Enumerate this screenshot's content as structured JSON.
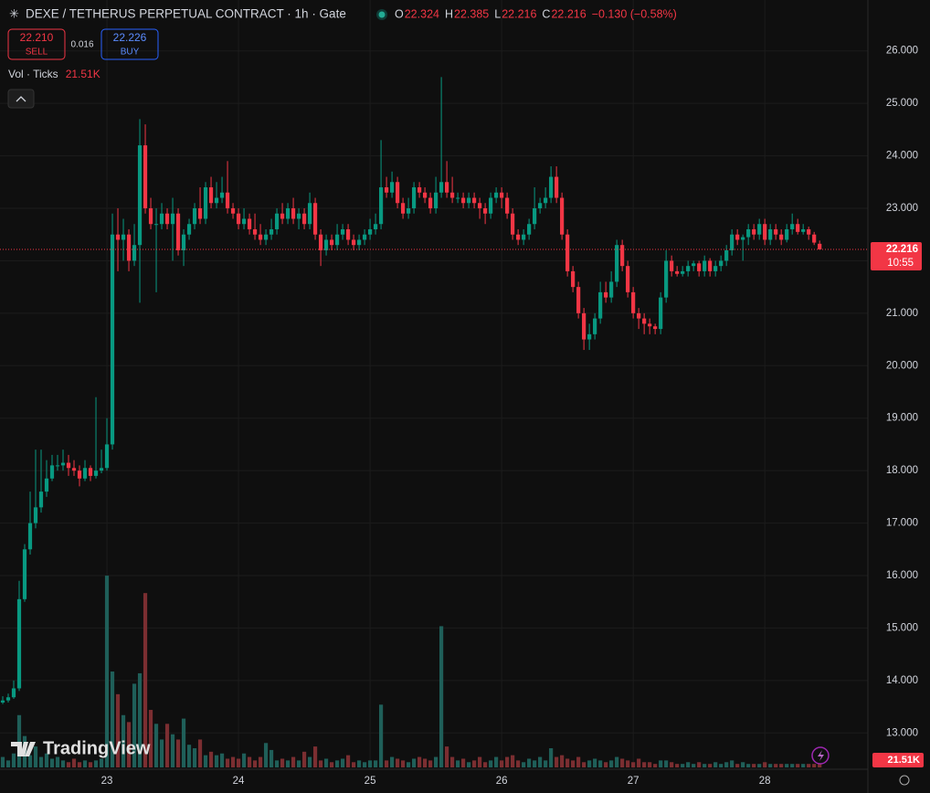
{
  "chart_data": {
    "type": "candlestick",
    "title": "DEXE / TETHERUS PERPETUAL CONTRACT · 1h · Gate",
    "header_fields": [
      {
        "key": "O",
        "value": "22.324"
      },
      {
        "key": "H",
        "value": "22.385"
      },
      {
        "key": "L",
        "value": "22.216"
      },
      {
        "key": "C",
        "value": "22.216"
      }
    ],
    "change": "−0.130 (−0.58%)",
    "sell": {
      "price": "22.210",
      "label": "SELL"
    },
    "spread": "0.016",
    "buy": {
      "price": "22.226",
      "label": "BUY"
    },
    "volume_title": "Vol · Ticks",
    "volume_last": "21.51K",
    "last_price_label": "22.216",
    "countdown": "10:55",
    "brand": "TradingView",
    "grid": true,
    "colors": {
      "up": "#089981",
      "down": "#f23645",
      "up_volume": "#1f5f59",
      "down_volume": "#7b2e31"
    },
    "xlim": [
      -0.5,
      157.8
    ],
    "xticks": [
      {
        "value": 19,
        "label": "23"
      },
      {
        "value": 43,
        "label": "24"
      },
      {
        "value": 67,
        "label": "25"
      },
      {
        "value": 91,
        "label": "26"
      },
      {
        "value": 115,
        "label": "27"
      },
      {
        "value": 139,
        "label": "28"
      }
    ],
    "ylim": [
      12.5,
      26.5
    ],
    "yticks": [
      {
        "value": 13,
        "label": "13.000"
      },
      {
        "value": 14,
        "label": "14.000"
      },
      {
        "value": 15,
        "label": "15.000"
      },
      {
        "value": 16,
        "label": "16.000"
      },
      {
        "value": 17,
        "label": "17.000"
      },
      {
        "value": 18,
        "label": "18.000"
      },
      {
        "value": 19,
        "label": "19.000"
      },
      {
        "value": 20,
        "label": "20.000"
      },
      {
        "value": 21,
        "label": "21.000"
      },
      {
        "value": 22,
        "label": "22.000"
      },
      {
        "value": 23,
        "label": "23.000"
      },
      {
        "value": 24,
        "label": "24.000"
      },
      {
        "value": 25,
        "label": "25.000"
      },
      {
        "value": 26,
        "label": "26.000"
      }
    ],
    "volume_ylim": [
      0,
      1200
    ],
    "ohlc": [
      [
        13.58,
        13.7,
        13.55,
        13.62
      ],
      [
        13.62,
        13.75,
        13.58,
        13.68
      ],
      [
        13.68,
        14.0,
        13.65,
        13.85
      ],
      [
        13.85,
        15.9,
        13.8,
        15.55
      ],
      [
        15.55,
        16.6,
        15.5,
        16.5
      ],
      [
        16.5,
        17.6,
        16.4,
        17.0
      ],
      [
        17.0,
        18.4,
        16.9,
        17.3
      ],
      [
        17.3,
        18.4,
        17.2,
        17.6
      ],
      [
        17.6,
        18.2,
        17.5,
        17.85
      ],
      [
        17.85,
        18.3,
        17.8,
        18.1
      ],
      [
        18.1,
        18.3,
        18.0,
        18.1
      ],
      [
        18.1,
        18.4,
        18.0,
        18.15
      ],
      [
        18.15,
        18.3,
        17.9,
        18.05
      ],
      [
        18.05,
        18.2,
        17.9,
        18.0
      ],
      [
        18.0,
        18.1,
        17.7,
        17.85
      ],
      [
        17.85,
        18.2,
        17.8,
        18.05
      ],
      [
        18.05,
        18.1,
        17.8,
        17.9
      ],
      [
        17.9,
        19.4,
        17.85,
        18.0
      ],
      [
        18.0,
        18.4,
        17.95,
        18.05
      ],
      [
        18.05,
        19.0,
        18.0,
        18.5
      ],
      [
        18.5,
        22.9,
        18.4,
        22.5
      ],
      [
        22.5,
        23.0,
        21.8,
        22.4
      ],
      [
        22.4,
        22.8,
        22.0,
        22.5
      ],
      [
        22.5,
        22.6,
        21.8,
        22.0
      ],
      [
        22.0,
        22.7,
        21.9,
        22.3
      ],
      [
        22.3,
        24.7,
        21.2,
        24.2
      ],
      [
        24.2,
        24.6,
        22.9,
        23.0
      ],
      [
        23.0,
        23.2,
        22.6,
        22.7
      ],
      [
        22.7,
        23.0,
        21.4,
        22.7
      ],
      [
        22.7,
        23.1,
        22.6,
        22.9
      ],
      [
        22.9,
        23.0,
        22.6,
        22.7
      ],
      [
        22.7,
        23.2,
        22.0,
        22.9
      ],
      [
        22.9,
        23.0,
        22.1,
        22.2
      ],
      [
        22.2,
        22.6,
        21.9,
        22.5
      ],
      [
        22.5,
        22.8,
        22.4,
        22.7
      ],
      [
        22.7,
        23.1,
        22.6,
        23.0
      ],
      [
        23.0,
        23.4,
        22.7,
        22.8
      ],
      [
        22.8,
        23.5,
        22.7,
        23.4
      ],
      [
        23.4,
        23.6,
        23.0,
        23.1
      ],
      [
        23.1,
        23.5,
        23.0,
        23.2
      ],
      [
        23.2,
        23.6,
        23.1,
        23.3
      ],
      [
        23.3,
        23.9,
        22.9,
        23.0
      ],
      [
        23.0,
        23.1,
        22.8,
        22.9
      ],
      [
        22.9,
        23.0,
        22.6,
        22.7
      ],
      [
        22.7,
        23.0,
        22.6,
        22.8
      ],
      [
        22.8,
        22.9,
        22.5,
        22.6
      ],
      [
        22.6,
        22.9,
        22.4,
        22.5
      ],
      [
        22.5,
        22.7,
        22.3,
        22.4
      ],
      [
        22.4,
        22.6,
        22.3,
        22.5
      ],
      [
        22.5,
        22.8,
        22.4,
        22.6
      ],
      [
        22.6,
        23.0,
        22.5,
        22.9
      ],
      [
        22.9,
        23.1,
        22.7,
        22.8
      ],
      [
        22.8,
        23.1,
        22.7,
        23.0
      ],
      [
        23.0,
        23.2,
        22.7,
        22.8
      ],
      [
        22.8,
        23.0,
        22.6,
        22.9
      ],
      [
        22.9,
        23.0,
        22.6,
        22.7
      ],
      [
        22.7,
        23.3,
        22.6,
        23.1
      ],
      [
        23.1,
        23.2,
        22.4,
        22.5
      ],
      [
        22.5,
        22.6,
        21.9,
        22.2
      ],
      [
        22.2,
        22.5,
        22.1,
        22.4
      ],
      [
        22.4,
        22.5,
        22.2,
        22.3
      ],
      [
        22.3,
        22.7,
        22.2,
        22.5
      ],
      [
        22.5,
        22.7,
        22.4,
        22.6
      ],
      [
        22.6,
        22.7,
        22.3,
        22.4
      ],
      [
        22.4,
        22.5,
        22.2,
        22.3
      ],
      [
        22.3,
        22.5,
        22.2,
        22.4
      ],
      [
        22.4,
        22.6,
        22.3,
        22.5
      ],
      [
        22.5,
        22.8,
        22.4,
        22.6
      ],
      [
        22.6,
        22.9,
        22.5,
        22.7
      ],
      [
        22.7,
        24.3,
        22.6,
        23.4
      ],
      [
        23.4,
        23.6,
        23.2,
        23.3
      ],
      [
        23.3,
        23.7,
        23.2,
        23.5
      ],
      [
        23.5,
        23.6,
        23.0,
        23.1
      ],
      [
        23.1,
        23.2,
        22.8,
        22.9
      ],
      [
        22.9,
        23.2,
        22.8,
        23.0
      ],
      [
        23.0,
        23.5,
        22.9,
        23.4
      ],
      [
        23.4,
        23.5,
        23.2,
        23.3
      ],
      [
        23.3,
        23.4,
        23.1,
        23.2
      ],
      [
        23.2,
        23.3,
        22.9,
        23.0
      ],
      [
        23.0,
        23.6,
        22.9,
        23.3
      ],
      [
        23.3,
        25.5,
        23.2,
        23.5
      ],
      [
        23.5,
        23.9,
        23.2,
        23.3
      ],
      [
        23.3,
        23.6,
        23.1,
        23.2
      ],
      [
        23.2,
        23.3,
        23.1,
        23.2
      ],
      [
        23.2,
        23.3,
        23.0,
        23.1
      ],
      [
        23.1,
        23.3,
        23.0,
        23.2
      ],
      [
        23.2,
        23.3,
        23.0,
        23.1
      ],
      [
        23.1,
        23.2,
        22.8,
        23.0
      ],
      [
        23.0,
        23.1,
        22.7,
        22.9
      ],
      [
        22.9,
        23.3,
        22.8,
        23.2
      ],
      [
        23.2,
        23.4,
        23.1,
        23.3
      ],
      [
        23.3,
        23.4,
        23.0,
        23.2
      ],
      [
        23.2,
        23.3,
        22.8,
        22.9
      ],
      [
        22.9,
        23.0,
        22.4,
        22.5
      ],
      [
        22.5,
        22.6,
        22.3,
        22.4
      ],
      [
        22.4,
        22.6,
        22.3,
        22.5
      ],
      [
        22.5,
        22.8,
        22.4,
        22.7
      ],
      [
        22.7,
        23.4,
        22.6,
        23.0
      ],
      [
        23.0,
        23.2,
        22.9,
        23.1
      ],
      [
        23.1,
        23.4,
        23.0,
        23.2
      ],
      [
        23.2,
        23.8,
        23.1,
        23.6
      ],
      [
        23.6,
        23.8,
        23.1,
        23.2
      ],
      [
        23.2,
        23.3,
        22.4,
        22.5
      ],
      [
        22.5,
        22.6,
        21.7,
        21.8
      ],
      [
        21.8,
        21.9,
        21.4,
        21.5
      ],
      [
        21.5,
        21.6,
        20.9,
        21.0
      ],
      [
        21.0,
        21.1,
        20.3,
        20.5
      ],
      [
        20.5,
        20.8,
        20.3,
        20.6
      ],
      [
        20.6,
        21.0,
        20.5,
        20.9
      ],
      [
        20.9,
        21.6,
        20.8,
        21.4
      ],
      [
        21.4,
        21.6,
        21.2,
        21.3
      ],
      [
        21.3,
        21.8,
        21.2,
        21.6
      ],
      [
        21.6,
        22.4,
        21.5,
        22.3
      ],
      [
        22.3,
        22.4,
        21.8,
        21.9
      ],
      [
        21.9,
        22.0,
        21.3,
        21.4
      ],
      [
        21.4,
        21.5,
        20.9,
        21.0
      ],
      [
        21.0,
        21.1,
        20.7,
        20.9
      ],
      [
        20.9,
        21.0,
        20.6,
        20.8
      ],
      [
        20.8,
        20.9,
        20.6,
        20.75
      ],
      [
        20.75,
        20.8,
        20.6,
        20.7
      ],
      [
        20.7,
        21.4,
        20.6,
        21.3
      ],
      [
        21.3,
        22.2,
        21.2,
        22.0
      ],
      [
        22.0,
        22.1,
        21.7,
        21.8
      ],
      [
        21.8,
        21.9,
        21.7,
        21.75
      ],
      [
        21.75,
        21.9,
        21.7,
        21.8
      ],
      [
        21.8,
        22.0,
        21.7,
        21.9
      ],
      [
        21.9,
        22.0,
        21.8,
        21.95
      ],
      [
        21.95,
        22.0,
        21.7,
        21.8
      ],
      [
        21.8,
        22.1,
        21.7,
        22.0
      ],
      [
        22.0,
        22.05,
        21.7,
        21.8
      ],
      [
        21.8,
        22.0,
        21.7,
        21.9
      ],
      [
        21.9,
        22.1,
        21.8,
        22.0
      ],
      [
        22.0,
        22.3,
        21.9,
        22.2
      ],
      [
        22.2,
        22.6,
        22.1,
        22.5
      ],
      [
        22.5,
        22.6,
        22.3,
        22.4
      ],
      [
        22.4,
        22.5,
        22.0,
        22.45
      ],
      [
        22.45,
        22.7,
        22.3,
        22.6
      ],
      [
        22.6,
        22.7,
        22.4,
        22.5
      ],
      [
        22.5,
        22.8,
        22.4,
        22.7
      ],
      [
        22.7,
        22.8,
        22.3,
        22.4
      ],
      [
        22.4,
        22.7,
        22.3,
        22.6
      ],
      [
        22.6,
        22.7,
        22.4,
        22.5
      ],
      [
        22.5,
        22.6,
        22.3,
        22.4
      ],
      [
        22.4,
        22.7,
        22.35,
        22.6
      ],
      [
        22.6,
        22.9,
        22.5,
        22.7
      ],
      [
        22.7,
        22.8,
        22.5,
        22.55
      ],
      [
        22.55,
        22.7,
        22.5,
        22.6
      ],
      [
        22.6,
        22.65,
        22.4,
        22.5
      ],
      [
        22.5,
        22.55,
        22.3,
        22.346
      ],
      [
        22.324,
        22.385,
        22.216,
        22.216
      ]
    ],
    "volume": [
      60,
      40,
      80,
      300,
      180,
      70,
      120,
      60,
      80,
      50,
      60,
      40,
      30,
      50,
      30,
      40,
      30,
      40,
      50,
      1100,
      550,
      420,
      300,
      260,
      480,
      540,
      1000,
      330,
      250,
      160,
      250,
      190,
      160,
      280,
      130,
      110,
      160,
      70,
      90,
      70,
      80,
      50,
      60,
      50,
      80,
      60,
      40,
      60,
      140,
      100,
      40,
      50,
      40,
      60,
      40,
      90,
      60,
      120,
      40,
      50,
      30,
      40,
      50,
      70,
      30,
      40,
      30,
      40,
      40,
      360,
      40,
      60,
      50,
      40,
      30,
      50,
      60,
      50,
      40,
      60,
      810,
      120,
      60,
      40,
      50,
      30,
      40,
      60,
      30,
      40,
      60,
      40,
      60,
      70,
      40,
      30,
      50,
      40,
      60,
      40,
      110,
      60,
      70,
      50,
      40,
      60,
      30,
      40,
      50,
      40,
      30,
      40,
      60,
      50,
      40,
      30,
      50,
      30,
      30,
      20,
      40,
      40,
      30,
      20,
      20,
      30,
      20,
      30,
      20,
      20,
      30,
      20,
      30,
      40,
      20,
      30,
      20,
      20,
      20,
      30,
      20,
      20,
      20,
      20,
      20,
      20,
      20,
      20,
      20,
      21.51
    ]
  }
}
